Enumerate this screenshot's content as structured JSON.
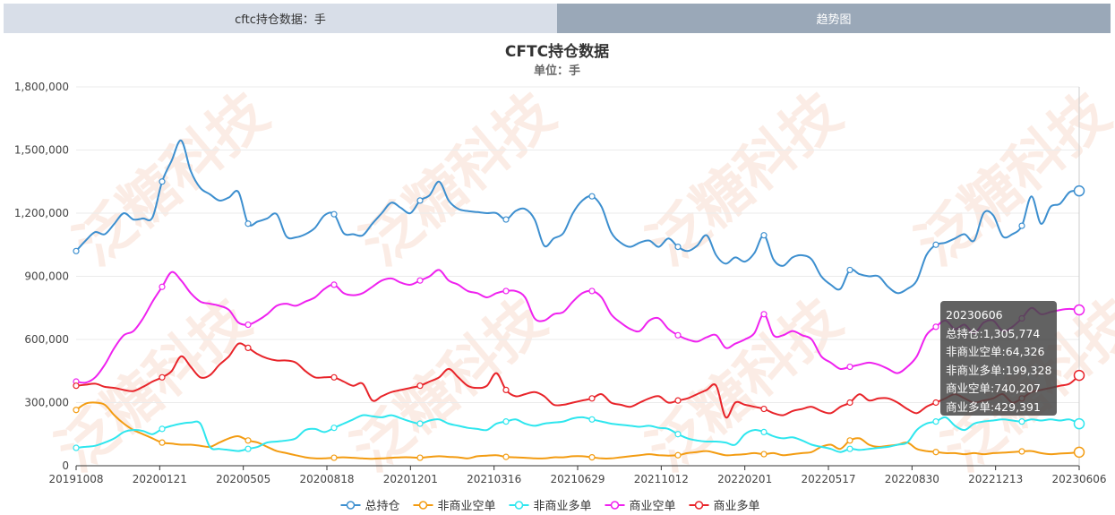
{
  "tabs": {
    "left_label": "cftc持仓数据：手",
    "right_label": "趋势图"
  },
  "watermark": "泛糖科技",
  "chart_data": {
    "type": "line",
    "title": "CFTC持仓数据",
    "subtitle": "单位：手",
    "ylim": [
      0,
      1800000
    ],
    "yticks": [
      "0",
      "300,000",
      "600,000",
      "900,000",
      "1,200,000",
      "1,500,000",
      "1,800,000"
    ],
    "x_tick_labels": [
      "20191008",
      "20200121",
      "20200505",
      "20200818",
      "20201201",
      "20210316",
      "20210629",
      "20211012",
      "20220201",
      "20220517",
      "20220830",
      "20221213",
      "20230606"
    ],
    "grid": true,
    "legend_position": "bottom",
    "series": [
      {
        "name": "总持仓",
        "color": "#3d8fcf",
        "values": [
          1020000,
          1070000,
          1110000,
          1100000,
          1150000,
          1200000,
          1170000,
          1175000,
          1180000,
          1350000,
          1450000,
          1545000,
          1400000,
          1320000,
          1290000,
          1260000,
          1275000,
          1300000,
          1150000,
          1160000,
          1175000,
          1195000,
          1090000,
          1085000,
          1100000,
          1130000,
          1190000,
          1195000,
          1105000,
          1100000,
          1095000,
          1150000,
          1200000,
          1250000,
          1225000,
          1200000,
          1260000,
          1285000,
          1350000,
          1260000,
          1220000,
          1210000,
          1205000,
          1200000,
          1200000,
          1170000,
          1210000,
          1220000,
          1170000,
          1045000,
          1080000,
          1105000,
          1200000,
          1260000,
          1280000,
          1230000,
          1110000,
          1060000,
          1040000,
          1060000,
          1070000,
          1040000,
          1080000,
          1040000,
          1020000,
          1045000,
          1095000,
          1000000,
          960000,
          990000,
          970000,
          1010000,
          1095000,
          980000,
          950000,
          990000,
          1000000,
          980000,
          900000,
          860000,
          840000,
          930000,
          910000,
          900000,
          900000,
          850000,
          820000,
          840000,
          880000,
          1000000,
          1050000,
          1060000,
          1080000,
          1100000,
          1070000,
          1200000,
          1190000,
          1090000,
          1100000,
          1140000,
          1280000,
          1150000,
          1230000,
          1245000,
          1300000,
          1305774
        ]
      },
      {
        "name": "非商业空单",
        "color": "#f39c12",
        "values": [
          265000,
          295000,
          300000,
          290000,
          240000,
          200000,
          170000,
          150000,
          130000,
          110000,
          105000,
          100000,
          100000,
          95000,
          90000,
          110000,
          130000,
          140000,
          120000,
          110000,
          90000,
          70000,
          60000,
          50000,
          40000,
          35000,
          35000,
          38000,
          40000,
          38000,
          35000,
          33000,
          35000,
          38000,
          40000,
          40000,
          38000,
          42000,
          45000,
          42000,
          40000,
          35000,
          45000,
          48000,
          50000,
          42000,
          40000,
          38000,
          35000,
          35000,
          40000,
          40000,
          45000,
          45000,
          40000,
          35000,
          35000,
          40000,
          45000,
          50000,
          55000,
          50000,
          48000,
          50000,
          60000,
          65000,
          70000,
          60000,
          50000,
          52000,
          55000,
          60000,
          55000,
          60000,
          50000,
          55000,
          60000,
          65000,
          90000,
          100000,
          80000,
          120000,
          130000,
          100000,
          90000,
          95000,
          100000,
          110000,
          80000,
          70000,
          65000,
          60000,
          60000,
          55000,
          60000,
          55000,
          60000,
          62000,
          65000,
          68000,
          70000,
          60000,
          55000,
          58000,
          60000,
          64326
        ]
      },
      {
        "name": "非商业多单",
        "color": "#2ee6ee",
        "values": [
          85000,
          90000,
          95000,
          110000,
          130000,
          160000,
          170000,
          165000,
          150000,
          175000,
          190000,
          200000,
          205000,
          200000,
          90000,
          80000,
          75000,
          70000,
          80000,
          90000,
          110000,
          115000,
          120000,
          130000,
          170000,
          175000,
          160000,
          180000,
          200000,
          220000,
          240000,
          235000,
          230000,
          240000,
          225000,
          210000,
          200000,
          215000,
          220000,
          200000,
          190000,
          180000,
          175000,
          170000,
          200000,
          210000,
          220000,
          200000,
          190000,
          200000,
          205000,
          210000,
          225000,
          230000,
          220000,
          210000,
          200000,
          195000,
          190000,
          185000,
          190000,
          180000,
          175000,
          150000,
          130000,
          120000,
          115000,
          115000,
          110000,
          100000,
          150000,
          170000,
          160000,
          140000,
          130000,
          135000,
          120000,
          100000,
          90000,
          80000,
          65000,
          80000,
          75000,
          80000,
          85000,
          90000,
          100000,
          110000,
          170000,
          200000,
          210000,
          230000,
          190000,
          170000,
          200000,
          210000,
          215000,
          220000,
          215000,
          210000,
          220000,
          215000,
          220000,
          215000,
          220000,
          199328
        ]
      },
      {
        "name": "商业空单",
        "color": "#ef22ef",
        "values": [
          400000,
          395000,
          420000,
          480000,
          560000,
          620000,
          640000,
          700000,
          780000,
          850000,
          920000,
          880000,
          820000,
          780000,
          770000,
          760000,
          740000,
          680000,
          670000,
          690000,
          720000,
          760000,
          770000,
          760000,
          780000,
          800000,
          840000,
          860000,
          820000,
          810000,
          820000,
          850000,
          880000,
          890000,
          870000,
          860000,
          880000,
          900000,
          930000,
          880000,
          860000,
          830000,
          820000,
          800000,
          820000,
          830000,
          830000,
          800000,
          700000,
          690000,
          720000,
          730000,
          780000,
          820000,
          830000,
          800000,
          720000,
          680000,
          650000,
          640000,
          690000,
          700000,
          650000,
          620000,
          600000,
          590000,
          610000,
          620000,
          560000,
          580000,
          600000,
          630000,
          720000,
          620000,
          620000,
          640000,
          620000,
          600000,
          520000,
          490000,
          460000,
          470000,
          480000,
          490000,
          480000,
          460000,
          440000,
          470000,
          520000,
          620000,
          660000,
          690000,
          650000,
          670000,
          630000,
          680000,
          690000,
          640000,
          660000,
          700000,
          750000,
          720000,
          730000,
          740000,
          745000,
          740207
        ]
      },
      {
        "name": "商业多单",
        "color": "#e8242a",
        "values": [
          380000,
          385000,
          390000,
          375000,
          370000,
          360000,
          355000,
          375000,
          400000,
          420000,
          450000,
          520000,
          470000,
          420000,
          430000,
          480000,
          520000,
          580000,
          560000,
          530000,
          510000,
          500000,
          500000,
          490000,
          450000,
          420000,
          420000,
          420000,
          400000,
          380000,
          390000,
          310000,
          330000,
          350000,
          360000,
          370000,
          380000,
          400000,
          420000,
          460000,
          420000,
          380000,
          370000,
          380000,
          440000,
          360000,
          330000,
          340000,
          350000,
          330000,
          290000,
          290000,
          300000,
          310000,
          320000,
          340000,
          300000,
          290000,
          280000,
          300000,
          320000,
          330000,
          300000,
          310000,
          320000,
          340000,
          360000,
          380000,
          230000,
          300000,
          290000,
          280000,
          270000,
          250000,
          240000,
          260000,
          270000,
          280000,
          260000,
          250000,
          280000,
          300000,
          340000,
          310000,
          320000,
          320000,
          300000,
          270000,
          250000,
          280000,
          300000,
          320000,
          340000,
          320000,
          300000,
          310000,
          320000,
          340000,
          300000,
          320000,
          350000,
          360000,
          370000,
          380000,
          390000,
          429391
        ]
      }
    ]
  },
  "tooltip": {
    "date": "20230606",
    "rows": [
      "总持仓:1,305,774",
      "非商业空单:64,326",
      "非商业多单:199,328",
      "商业空单:740,207",
      "商业多单:429,391"
    ]
  }
}
